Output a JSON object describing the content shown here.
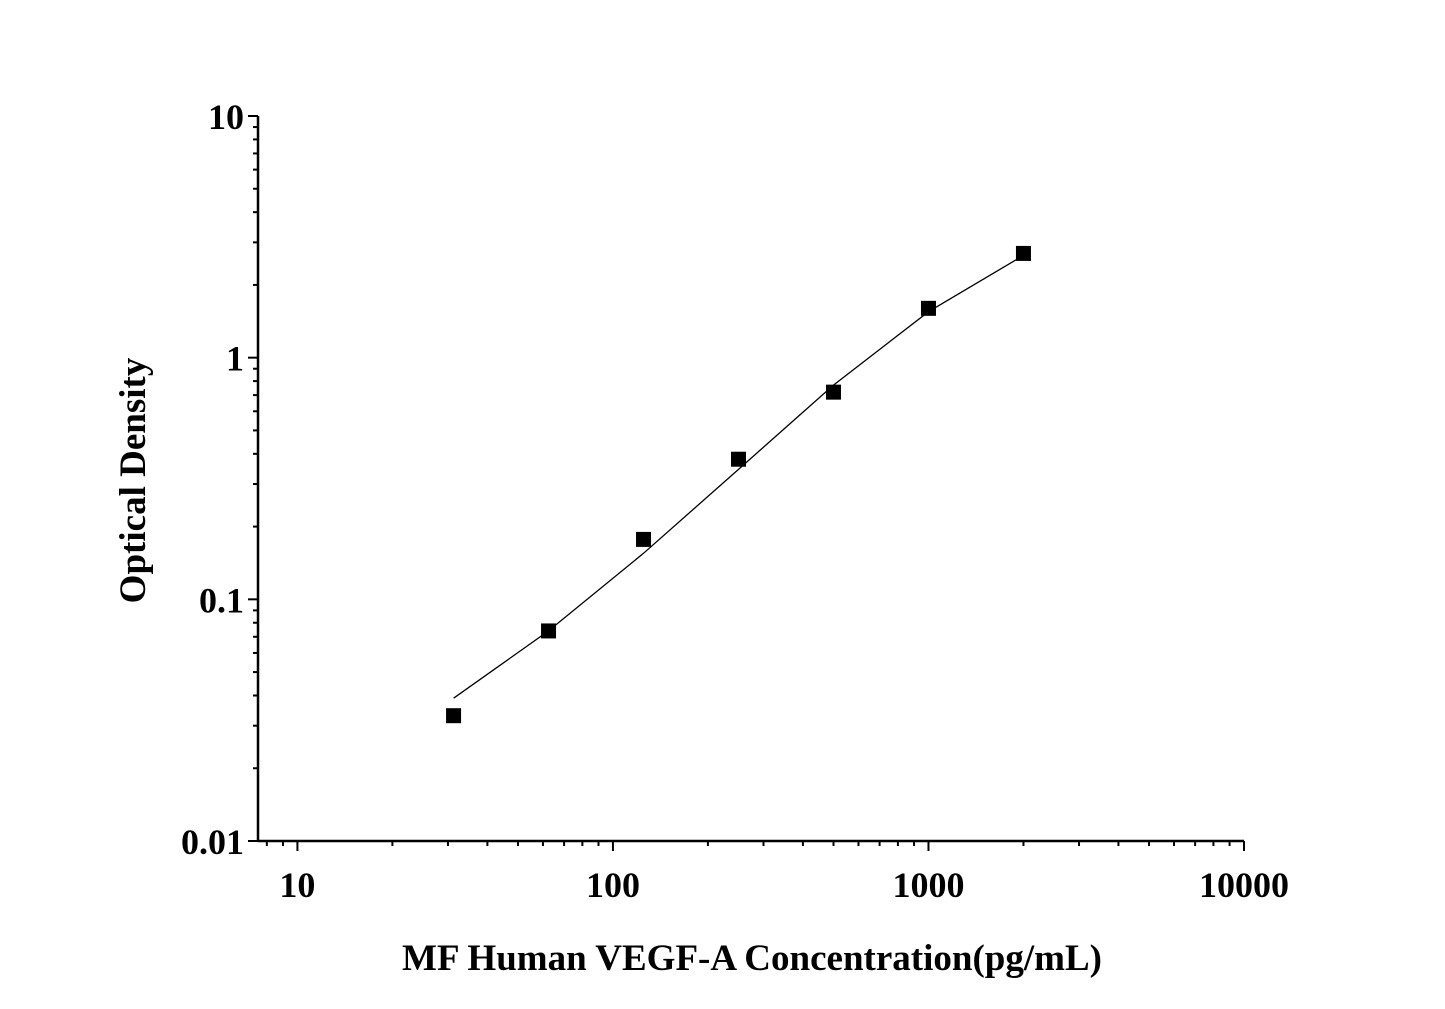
{
  "chart_data": {
    "type": "scatter",
    "title": "",
    "xlabel": "MF Human VEGF-A Concentration(pg/mL)",
    "ylabel": "Optical Density",
    "xscale": "log",
    "yscale": "log",
    "xlim": [
      7.5,
      10000
    ],
    "ylim": [
      0.01,
      10
    ],
    "x_ticks": [
      10,
      100,
      1000,
      10000
    ],
    "x_tick_labels": [
      "10",
      "100",
      "1000",
      "10000"
    ],
    "y_ticks": [
      0.01,
      0.1,
      1,
      10
    ],
    "y_tick_labels": [
      "0.01",
      "0.1",
      "1",
      "10"
    ],
    "grid": false,
    "legend": "none",
    "series": [
      {
        "marker": "square",
        "color": "#000000",
        "x": [
          31.25,
          62.5,
          125,
          250,
          500,
          1000,
          2000
        ],
        "y": [
          0.033,
          0.074,
          0.177,
          0.38,
          0.72,
          1.6,
          2.7
        ]
      }
    ],
    "fit_curve": {
      "color": "#000000",
      "x": [
        31.25,
        62.5,
        125,
        250,
        500,
        1000,
        2000
      ],
      "y": [
        0.039,
        0.074,
        0.155,
        0.345,
        0.77,
        1.55,
        2.65
      ]
    }
  }
}
